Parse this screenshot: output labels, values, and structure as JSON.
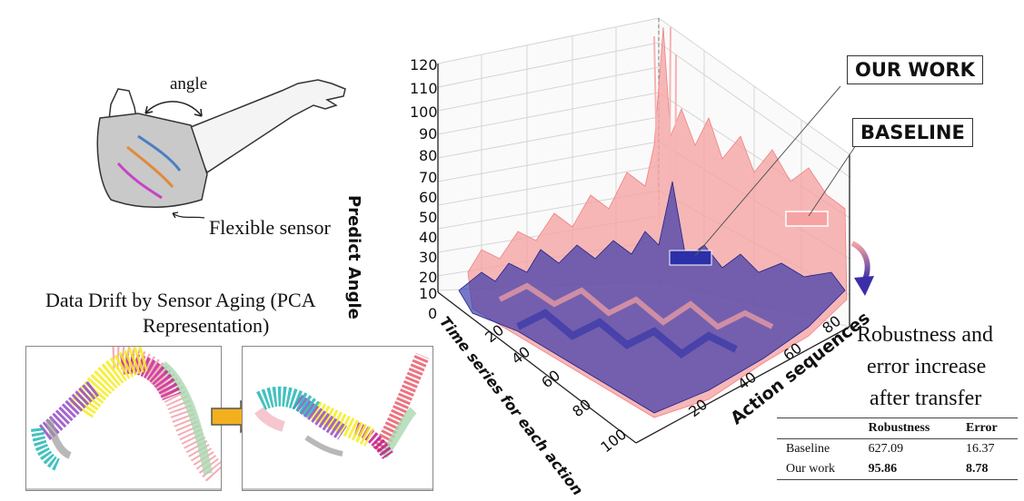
{
  "arm": {
    "angle_label": "angle",
    "sensor_label": "Flexible sensor"
  },
  "drift": {
    "title_line1": "Data Drift by Sensor Aging (PCA",
    "title_line2": "Representation)"
  },
  "plot3d": {
    "z_label": "Predict Angle",
    "z_ticks": [
      "120",
      "110",
      "100",
      "90",
      "80",
      "70",
      "60",
      "50",
      "40",
      "30",
      "20",
      "10",
      "0"
    ],
    "y_label": "Time series for each action",
    "y_ticks": [
      "20",
      "40",
      "60",
      "80",
      "100"
    ],
    "x_label": "Action sequences",
    "x_ticks": [
      "20",
      "40",
      "60",
      "80"
    ]
  },
  "labels": {
    "our_work": "OUR WORK",
    "baseline": "BASELINE"
  },
  "conclusion": {
    "line1": "Robustness and",
    "line2": "error increase",
    "line3": "after transfer"
  },
  "table": {
    "headers": [
      "",
      "Robustness",
      "Error"
    ],
    "rows": [
      [
        "Baseline",
        "627.09",
        "16.37"
      ],
      [
        "Our work",
        "95.86",
        "8.78"
      ]
    ]
  },
  "colors": {
    "ours": "#2b2fa8",
    "baseline": "#f39a9a",
    "arrow": "#f2b01e"
  }
}
